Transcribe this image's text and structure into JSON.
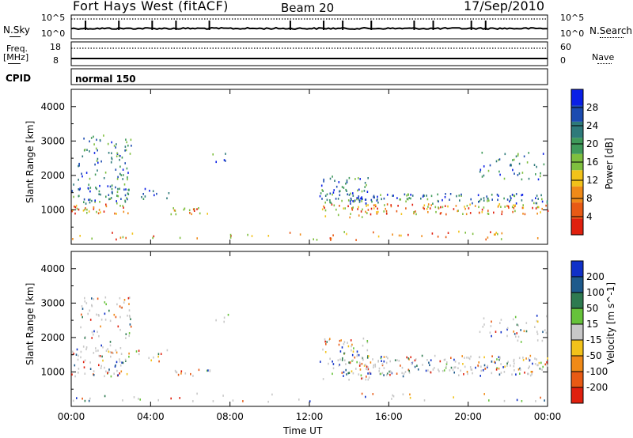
{
  "header": {
    "station": "Fort Hays West (fitACF)",
    "beam": "Beam 20",
    "date": "17/Sep/2010"
  },
  "top_panels": {
    "nsky_label": "N.Sky",
    "nsky_ticks": [
      "10^5",
      "10^0"
    ],
    "nsearch_label": "N.Search",
    "nsearch_ticks": [
      "10^5",
      "10^0"
    ],
    "freq_label": "Freq.",
    "freq_unit": "[MHz]",
    "freq_ticks": [
      "18",
      "8"
    ],
    "nave_label": "Nave",
    "nave_ticks": [
      "60",
      "0"
    ],
    "cpid_label": "CPID",
    "cpid_value": "normal 150"
  },
  "chart_data": [
    {
      "type": "heatmap",
      "title": "",
      "xlabel": "Time UT",
      "ylabel": "Slant Range [km]",
      "x_ticks": [
        "00:00",
        "04:00",
        "08:00",
        "12:00",
        "16:00",
        "20:00",
        "00:00"
      ],
      "xlim_hours": [
        0,
        24
      ],
      "y_ticks": [
        1000,
        2000,
        3000,
        4000
      ],
      "ylim": [
        0,
        4500
      ],
      "colorbar": {
        "label": "Power [dB]",
        "ticks": [
          "4",
          "8",
          "12",
          "16",
          "20",
          "24",
          "28"
        ],
        "range": [
          0,
          30
        ],
        "colors": [
          "#0a1fe6",
          "#1c4bb0",
          "#2e7a7a",
          "#3f9a5a",
          "#7fbf3f",
          "#f2c21a",
          "#f08a18",
          "#e85a14",
          "#e0200e"
        ]
      },
      "scatter_bands": [
        {
          "t0": 0.0,
          "t1": 2.9,
          "r0": 900,
          "r1": 1800,
          "level": 0.6
        },
        {
          "t0": 0.3,
          "t1": 3.0,
          "r0": 1900,
          "r1": 3200,
          "level": 0.35
        },
        {
          "t0": 3.2,
          "t1": 5.0,
          "r0": 1300,
          "r1": 1700,
          "level": 0.25
        },
        {
          "t0": 5.0,
          "t1": 7.0,
          "r0": 900,
          "r1": 1100,
          "level": 0.7
        },
        {
          "t0": 7.0,
          "t1": 8.0,
          "r0": 2400,
          "r1": 2700,
          "level": 0.25
        },
        {
          "t0": 12.5,
          "t1": 15.0,
          "r0": 800,
          "r1": 2000,
          "level": 0.5
        },
        {
          "t0": 14.0,
          "t1": 24.0,
          "r0": 900,
          "r1": 1500,
          "level": 0.6
        },
        {
          "t0": 20.5,
          "t1": 24.0,
          "r0": 1900,
          "r1": 2700,
          "level": 0.25
        },
        {
          "t0": 0.0,
          "t1": 24.0,
          "r0": 150,
          "r1": 400,
          "level": 0.15
        }
      ]
    },
    {
      "type": "heatmap",
      "title": "",
      "xlabel": "Time UT",
      "ylabel": "Slant Range [km]",
      "x_ticks": [
        "00:00",
        "04:00",
        "08:00",
        "12:00",
        "16:00",
        "20:00",
        "00:00"
      ],
      "xlim_hours": [
        0,
        24
      ],
      "y_ticks": [
        1000,
        2000,
        3000,
        4000
      ],
      "ylim": [
        0,
        4500
      ],
      "colorbar": {
        "label": "Velocity [m s^-1]",
        "ticks": [
          "200",
          "100",
          "50",
          "15",
          "-15",
          "-50",
          "-100",
          "-200"
        ],
        "range": [
          -250,
          250
        ],
        "colors": [
          "#1030c8",
          "#1e5a8c",
          "#2e7a50",
          "#66c23a",
          "#c8c8c8",
          "#f2c21a",
          "#f08a18",
          "#e85a14",
          "#e0200e"
        ]
      },
      "scatter_bands": [
        {
          "t0": 0.0,
          "t1": 2.9,
          "r0": 900,
          "r1": 1800,
          "level": 0.5
        },
        {
          "t0": 0.3,
          "t1": 3.0,
          "r0": 1900,
          "r1": 3200,
          "level": 0.3
        },
        {
          "t0": 3.2,
          "t1": 5.0,
          "r0": 1300,
          "r1": 1700,
          "level": 0.25
        },
        {
          "t0": 5.0,
          "t1": 7.0,
          "r0": 900,
          "r1": 1100,
          "level": 0.6
        },
        {
          "t0": 7.0,
          "t1": 8.0,
          "r0": 2400,
          "r1": 2700,
          "level": 0.2
        },
        {
          "t0": 12.5,
          "t1": 15.0,
          "r0": 800,
          "r1": 2000,
          "level": 0.45
        },
        {
          "t0": 14.0,
          "t1": 24.0,
          "r0": 900,
          "r1": 1500,
          "level": 0.6
        },
        {
          "t0": 20.5,
          "t1": 24.0,
          "r0": 1900,
          "r1": 2700,
          "level": 0.25
        },
        {
          "t0": 0.0,
          "t1": 24.0,
          "r0": 150,
          "r1": 400,
          "level": 0.12
        }
      ]
    }
  ]
}
